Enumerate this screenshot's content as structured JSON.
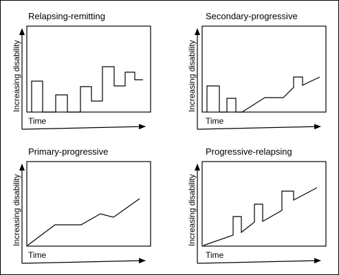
{
  "colors": {
    "line": "#000000",
    "background": "#ffffff"
  },
  "panels": [
    {
      "id": "relapsing-remitting",
      "title": "Relapsing-remitting",
      "xlabel": "Time",
      "ylabel": "Increasing disability"
    },
    {
      "id": "secondary-progressive",
      "title": "Secondary-progressive",
      "xlabel": "Time",
      "ylabel": "Increasing disability"
    },
    {
      "id": "primary-progressive",
      "title": "Primary-progressive",
      "xlabel": "Time",
      "ylabel": "Increasing disability"
    },
    {
      "id": "progressive-relapsing",
      "title": "Progressive-relapsing",
      "xlabel": "Time",
      "ylabel": "Increasing disability"
    }
  ]
}
